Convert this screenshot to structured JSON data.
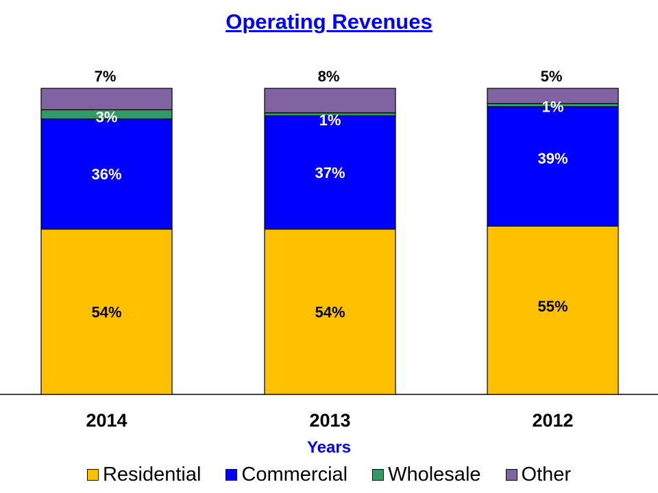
{
  "chart_data": {
    "type": "bar",
    "stacked": true,
    "percent_stacked": true,
    "title": "Operating Revenues",
    "xlabel": "Years",
    "ylabel": "",
    "ylim": [
      0,
      100
    ],
    "grid": false,
    "legend_position": "bottom",
    "categories": [
      "2014",
      "2013",
      "2012"
    ],
    "series": [
      {
        "name": "Residential",
        "color": "#ffc000",
        "values": [
          54,
          54,
          55
        ],
        "labels": [
          "54%",
          "54%",
          "55%"
        ],
        "label_color": "#000000"
      },
      {
        "name": "Commercial",
        "color": "#0000ff",
        "values": [
          36,
          37,
          39
        ],
        "labels": [
          "36%",
          "37%",
          "39%"
        ],
        "label_color": "#ffffff"
      },
      {
        "name": "Wholesale",
        "color": "#339966",
        "values": [
          3,
          1,
          1
        ],
        "labels": [
          "3%",
          "1%",
          "1%"
        ],
        "label_color": "#ffffff"
      },
      {
        "name": "Other",
        "color": "#8064a2",
        "values": [
          7,
          8,
          5
        ],
        "labels": [
          "7%",
          "8%",
          "5%"
        ],
        "label_color": "#000000"
      }
    ]
  }
}
